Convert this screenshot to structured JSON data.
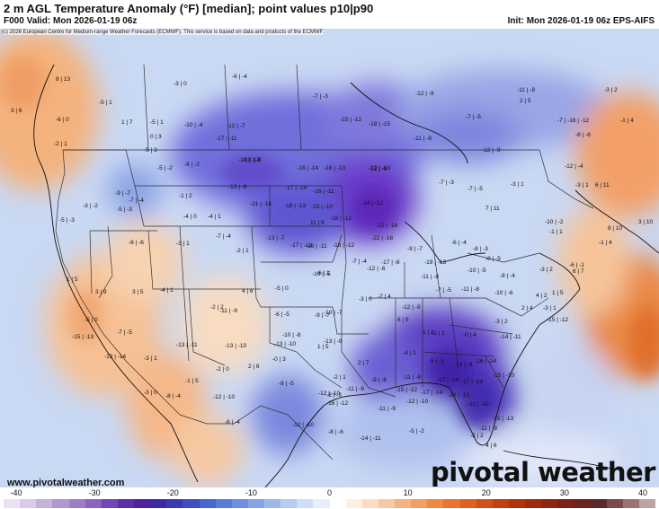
{
  "header": {
    "title": "2 m AGL Temperature Anomaly (°F) [median]; point values p10|p90",
    "valid": "F000 Valid: Mon 2026-01-19 06z",
    "init": "Init: Mon 2026-01-19 06z EPS-AIFS"
  },
  "map": {
    "copyright": "(c) 2026 European Centre for Medium-range Weather Forecasts (ECMWF). This service is based on data and products of the ECMWF.",
    "points": [
      {
        "label": "8 | 13"
      },
      {
        "label": "3 | 6"
      },
      {
        "label": "-6 | 0"
      },
      {
        "label": "-5 | 1"
      },
      {
        "label": "-3 | 0"
      },
      {
        "label": "-6 | -4"
      },
      {
        "label": "-7 | -3"
      },
      {
        "label": "-12 | -9"
      },
      {
        "label": "-11 | -8"
      },
      {
        "label": "-3 | 2"
      },
      {
        "label": "2 | 5"
      },
      {
        "label": "-2 | 1"
      },
      {
        "label": "1 | 7"
      },
      {
        "label": "-5 | 1"
      },
      {
        "label": "-10 | -4"
      },
      {
        "label": "-12 | -7"
      },
      {
        "label": "-15 | -12"
      },
      {
        "label": "-18 | -15"
      },
      {
        "label": "-11 | -8"
      },
      {
        "label": "-7 | -5"
      },
      {
        "label": "-7 | -16 | -12"
      },
      {
        "label": "-1 | 4"
      },
      {
        "label": "-8 | -6"
      },
      {
        "label": "0 | 3"
      },
      {
        "label": "-17 | -11"
      },
      {
        "label": "-13 | -8"
      },
      {
        "label": "-8 | -2"
      },
      {
        "label": "-12 | -9"
      },
      {
        "label": "-12 | -9"
      },
      {
        "label": "-12 | -4"
      },
      {
        "label": "-5 | 3"
      },
      {
        "label": "-5 | -2"
      },
      {
        "label": "-18 | -13"
      },
      {
        "label": "-18 | -14"
      },
      {
        "label": "-18 | -13"
      },
      {
        "label": "-12 | -13"
      },
      {
        "label": "-7 | -3"
      },
      {
        "label": "-7 | -5"
      },
      {
        "label": "-3 | 1"
      },
      {
        "label": "-9 | -7"
      },
      {
        "label": "-7 | -4"
      },
      {
        "label": "-1 | 2"
      },
      {
        "label": "-13 | -9"
      },
      {
        "label": "-17 | -14"
      },
      {
        "label": "-16 | -11"
      },
      {
        "label": "-14 | -12"
      },
      {
        "label": "-3 | 1"
      },
      {
        "label": "6 | 11"
      },
      {
        "label": "-21 | -16"
      },
      {
        "label": "-18 | -13"
      },
      {
        "label": "-15 | -10"
      },
      {
        "label": "-22 | -18"
      },
      {
        "label": "7 | 11"
      },
      {
        "label": "-3 | -2"
      },
      {
        "label": "-5 | -3"
      },
      {
        "label": "-4 | 0"
      },
      {
        "label": "-4 | 1"
      },
      {
        "label": "-18 | -12"
      },
      {
        "label": "-22 | -18"
      },
      {
        "label": "-10 | -2"
      },
      {
        "label": "8 | 10"
      },
      {
        "label": "3 | 10"
      },
      {
        "label": "-5 | -3"
      },
      {
        "label": "11 | 9"
      },
      {
        "label": "-7 | -4"
      },
      {
        "label": "-13 | -7"
      },
      {
        "label": "-17 | -12"
      },
      {
        "label": "-18 | -12"
      },
      {
        "label": "-9 | -7"
      },
      {
        "label": "-6 | -4"
      },
      {
        "label": "-8 | -3"
      },
      {
        "label": "-1 | 1"
      },
      {
        "label": "-8 | -6"
      },
      {
        "label": "-3 | 1"
      },
      {
        "label": "-2 | 1"
      },
      {
        "label": "-16 | -11"
      },
      {
        "label": "-12 | -6"
      },
      {
        "label": "-17 | -8"
      },
      {
        "label": "-19 | -13"
      },
      {
        "label": "-8 | -5"
      },
      {
        "label": "-10 | -5"
      },
      {
        "label": "-3 | 2"
      },
      {
        "label": "-6 | -1"
      },
      {
        "label": "1 | 5"
      },
      {
        "label": "3 | 5"
      },
      {
        "label": "4 | 6"
      },
      {
        "label": "-5 | 0"
      },
      {
        "label": "-10 | -5"
      },
      {
        "label": "-7 | -4"
      },
      {
        "label": "-11 | -8"
      },
      {
        "label": "-8 | -4"
      },
      {
        "label": "6 | 7"
      },
      {
        "label": "3 | 9"
      },
      {
        "label": "-2 | 2"
      },
      {
        "label": "-6 | 1"
      },
      {
        "label": "-3 | 0"
      },
      {
        "label": "-2 | 4"
      },
      {
        "label": "-7 | -5"
      },
      {
        "label": "-11 | -8"
      },
      {
        "label": "-10 | -6"
      },
      {
        "label": "4 | 2"
      },
      {
        "label": "1 | 5"
      },
      {
        "label": "-1 | 4"
      },
      {
        "label": "-4 | 1"
      },
      {
        "label": "-6 | -5"
      },
      {
        "label": "-9 | -7"
      },
      {
        "label": "-10 | -7"
      },
      {
        "label": "-12 | -9"
      },
      {
        "label": "2 | 4"
      },
      {
        "label": "-3 | 1"
      },
      {
        "label": "-5 | 0"
      },
      {
        "label": "-11 | -9"
      },
      {
        "label": "-10 | -8"
      },
      {
        "label": "-13 | -8"
      },
      {
        "label": "6 | 9"
      },
      {
        "label": "1 | 2"
      },
      {
        "label": "-0 | 4"
      },
      {
        "label": "-3 | 2"
      },
      {
        "label": "-7 | -5"
      },
      {
        "label": "-13 | -10"
      },
      {
        "label": "2 | 6"
      },
      {
        "label": "-0 | 3"
      },
      {
        "label": "-2 | 1"
      },
      {
        "label": "-2 | 1"
      },
      {
        "label": "-14 | -11"
      },
      {
        "label": "-15 | -12"
      },
      {
        "label": "-13 | -11"
      },
      {
        "label": "-13 | -10"
      },
      {
        "label": "1 | 5"
      },
      {
        "label": "2 | 7"
      },
      {
        "label": "-4 | 1"
      },
      {
        "label": "-5 | -3"
      },
      {
        "label": "-13 | -8"
      },
      {
        "label": "-16 | -14"
      },
      {
        "label": "-15 | -13"
      },
      {
        "label": "-19 | -14"
      },
      {
        "label": "-3 | 1"
      },
      {
        "label": "-1 | 5"
      },
      {
        "label": "-6 | -3"
      },
      {
        "label": "-9 | -8"
      },
      {
        "label": "-11 | -8"
      },
      {
        "label": "-17 | -14"
      },
      {
        "label": "-17 | -14"
      },
      {
        "label": "-15 | -10"
      },
      {
        "label": "-2 | 0"
      },
      {
        "label": "-8 | -5"
      },
      {
        "label": "-12 | -10"
      },
      {
        "label": "-11 | -9"
      },
      {
        "label": "-15 | -12"
      },
      {
        "label": "-17 | -14"
      },
      {
        "label": "-18 | -15"
      },
      {
        "label": "-11 | -10"
      },
      {
        "label": "-3 | 0"
      },
      {
        "label": "-8 | -4"
      },
      {
        "label": "-12 | -10"
      },
      {
        "label": "-16 | -12"
      },
      {
        "label": "-11 | -9"
      },
      {
        "label": "-12 | -10"
      },
      {
        "label": "-15 | -13"
      },
      {
        "label": "-11 | -9"
      },
      {
        "label": "-6 | -4"
      },
      {
        "label": "-12 | -10"
      },
      {
        "label": "-8 | -6"
      },
      {
        "label": "-14 | -11"
      },
      {
        "label": "-5 | -2"
      },
      {
        "label": "-5 | 2"
      },
      {
        "label": "4 | 6"
      }
    ]
  },
  "footer": {
    "site": "www.pivotalweather.com",
    "logo": "pivotal weather"
  },
  "colorbar": {
    "ticks": [
      "-40",
      "-30",
      "-20",
      "-10",
      "0",
      "10",
      "20",
      "30",
      "40"
    ],
    "colors": [
      "#ebe3f2",
      "#d9cce8",
      "#c6b1dd",
      "#b296d1",
      "#9f7ec8",
      "#8a64bd",
      "#7446b4",
      "#5b2da8",
      "#4a239e",
      "#3d2aa3",
      "#3b3ab3",
      "#3f4fc2",
      "#4965cf",
      "#5a7ad8",
      "#6e8fdf",
      "#86a3e5",
      "#9fb8ec",
      "#b8cbf1",
      "#d0ddf5",
      "#e8eefa",
      "#ffffff",
      "#fdefe2",
      "#fbdcc3",
      "#f8c8a2",
      "#f5b380",
      "#f29f62",
      "#ef8a45",
      "#ea7430",
      "#e06020",
      "#d24f17",
      "#c23f10",
      "#b3320c",
      "#a22a0c",
      "#8f2510",
      "#7d2216",
      "#6d231d",
      "#5e2826",
      "#7b4a4a",
      "#9b7373",
      "#bfa3a3"
    ]
  }
}
